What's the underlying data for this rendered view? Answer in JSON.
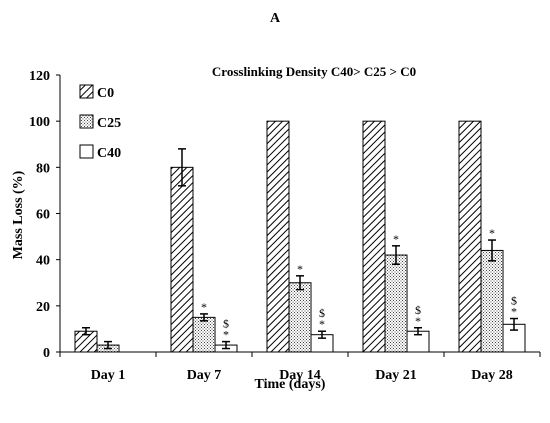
{
  "chart_data": {
    "type": "bar",
    "panel_label": "A",
    "title": "Crosslinking Density C40> C25 > C0",
    "xlabel": "Time (days)",
    "ylabel": "Mass Loss (%)",
    "ylim": [
      0,
      120
    ],
    "yticks": [
      0,
      20,
      40,
      60,
      80,
      100,
      120
    ],
    "categories": [
      "Day 1",
      "Day 7",
      "Day 14",
      "Day 21",
      "Day 28"
    ],
    "legend_position": "top-left",
    "grid": false,
    "series": [
      {
        "name": "C0",
        "pattern": "diagonal-hatch",
        "values": [
          9,
          80,
          100,
          100,
          100
        ],
        "errors": [
          1.5,
          8,
          0,
          0,
          0
        ],
        "marks": [
          "",
          "",
          "",
          "",
          ""
        ]
      },
      {
        "name": "C25",
        "pattern": "dotted",
        "values": [
          3,
          15,
          30,
          42,
          44
        ],
        "errors": [
          1.5,
          1.5,
          3,
          4,
          4.5
        ],
        "marks": [
          "",
          "*",
          "*",
          "*",
          "*"
        ]
      },
      {
        "name": "C40",
        "pattern": "plain",
        "values": [
          0,
          3,
          7.5,
          9,
          12
        ],
        "errors": [
          0,
          1.5,
          1.5,
          1.5,
          2.5
        ],
        "marks": [
          "",
          "*$",
          "*$",
          "*$",
          "*$"
        ]
      }
    ]
  }
}
